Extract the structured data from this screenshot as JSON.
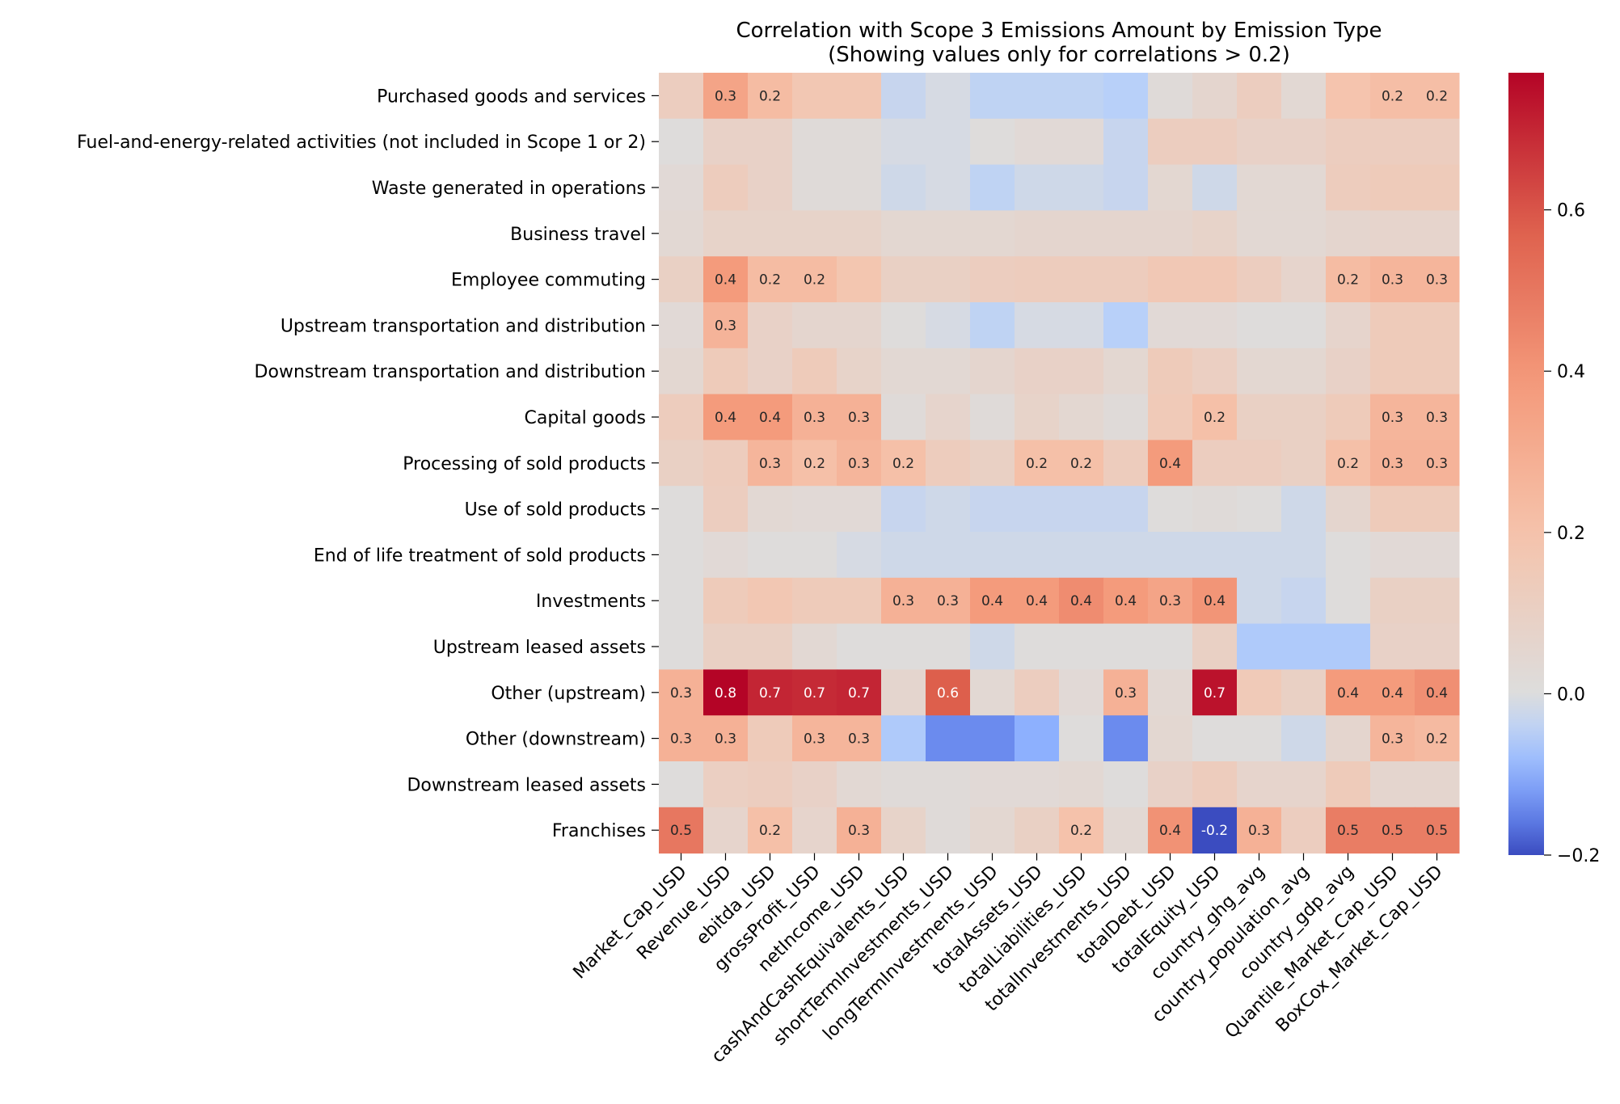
{
  "chart_data": {
    "type": "heatmap",
    "title": "Correlation with Scope 3 Emissions Amount by Emission Type",
    "subtitle": "(Showing values only for correlations > 0.2)",
    "rows": [
      "Purchased goods and services",
      "Fuel-and-energy-related activities (not included in Scope 1 or 2)",
      "Waste generated in operations",
      "Business travel",
      "Employee commuting",
      "Upstream transportation and distribution",
      "Downstream transportation and distribution",
      "Capital goods",
      "Processing of sold products",
      "Use of sold products",
      "End of life treatment of sold products",
      "Investments",
      "Upstream leased assets",
      "Other (upstream)",
      "Other (downstream)",
      "Downstream leased assets",
      "Franchises"
    ],
    "columns": [
      "Market_Cap_USD",
      "Revenue_USD",
      "ebitda_USD",
      "grossProfit_USD",
      "netIncome_USD",
      "cashAndCashEquivalents_USD",
      "shortTermInvestments_USD",
      "longTermInvestments_USD",
      "totalAssets_USD",
      "totalLiabilities_USD",
      "totalInvestments_USD",
      "totalDebt_USD",
      "totalEquity_USD",
      "country_ghg_avg",
      "country_population_avg",
      "country_gdp_avg",
      "Quantile_Market_Cap_USD",
      "BoxCox_Market_Cap_USD"
    ],
    "values": [
      [
        0.12,
        0.34,
        0.23,
        0.17,
        0.17,
        -0.03,
        -0.01,
        -0.04,
        -0.04,
        -0.04,
        -0.05,
        0.02,
        0.06,
        0.12,
        0.04,
        0.19,
        0.22,
        0.22
      ],
      [
        0.01,
        0.09,
        0.09,
        0.02,
        0.02,
        -0.01,
        -0.01,
        0.01,
        0.03,
        0.03,
        -0.03,
        0.12,
        0.12,
        0.09,
        0.09,
        0.12,
        0.12,
        0.12
      ],
      [
        0.03,
        0.13,
        0.09,
        0.02,
        0.02,
        -0.02,
        -0.01,
        -0.04,
        -0.02,
        -0.02,
        -0.03,
        0.05,
        -0.02,
        0.04,
        0.04,
        0.13,
        0.14,
        0.14
      ],
      [
        0.04,
        0.08,
        0.08,
        0.08,
        0.08,
        0.05,
        0.05,
        0.05,
        0.06,
        0.06,
        0.06,
        0.06,
        0.08,
        0.04,
        0.04,
        0.06,
        0.07,
        0.07
      ],
      [
        0.1,
        0.38,
        0.23,
        0.23,
        0.18,
        0.1,
        0.1,
        0.12,
        0.13,
        0.13,
        0.13,
        0.16,
        0.16,
        0.12,
        0.07,
        0.23,
        0.26,
        0.26
      ],
      [
        0.03,
        0.27,
        0.09,
        0.06,
        0.06,
        0.01,
        -0.01,
        -0.04,
        -0.01,
        -0.01,
        -0.05,
        0.03,
        0.03,
        0.01,
        0.01,
        0.07,
        0.14,
        0.14
      ],
      [
        0.05,
        0.14,
        0.09,
        0.14,
        0.08,
        0.04,
        0.04,
        0.06,
        0.09,
        0.09,
        0.05,
        0.14,
        0.11,
        0.05,
        0.05,
        0.09,
        0.14,
        0.14
      ],
      [
        0.13,
        0.38,
        0.38,
        0.28,
        0.28,
        0.02,
        0.07,
        0.02,
        0.08,
        0.05,
        0.02,
        0.15,
        0.21,
        0.1,
        0.1,
        0.14,
        0.26,
        0.26
      ],
      [
        0.1,
        0.13,
        0.26,
        0.21,
        0.26,
        0.21,
        0.13,
        0.1,
        0.21,
        0.21,
        0.13,
        0.38,
        0.12,
        0.12,
        0.1,
        0.21,
        0.27,
        0.27
      ],
      [
        0.01,
        0.12,
        0.04,
        0.03,
        0.03,
        -0.03,
        -0.02,
        -0.03,
        -0.03,
        -0.03,
        -0.03,
        0.01,
        0.02,
        0.01,
        -0.02,
        0.06,
        0.14,
        0.14
      ],
      [
        0.01,
        0.03,
        0.01,
        0.01,
        -0.01,
        -0.02,
        -0.02,
        -0.02,
        -0.02,
        -0.02,
        -0.02,
        -0.02,
        -0.02,
        -0.02,
        -0.02,
        0.01,
        0.03,
        0.03
      ],
      [
        0.01,
        0.14,
        0.17,
        0.14,
        0.14,
        0.28,
        0.28,
        0.38,
        0.38,
        0.43,
        0.38,
        0.34,
        0.4,
        -0.02,
        -0.03,
        0.01,
        0.1,
        0.1
      ],
      [
        0.01,
        0.1,
        0.1,
        0.04,
        0.01,
        0.01,
        0.01,
        -0.02,
        0.01,
        0.01,
        0.01,
        0.01,
        0.1,
        -0.06,
        -0.06,
        -0.06,
        0.09,
        0.09
      ],
      [
        0.28,
        0.77,
        0.7,
        0.69,
        0.7,
        0.06,
        0.58,
        0.04,
        0.12,
        0.03,
        0.28,
        0.04,
        0.74,
        0.15,
        0.1,
        0.38,
        0.38,
        0.42
      ],
      [
        0.28,
        0.28,
        0.14,
        0.26,
        0.26,
        -0.06,
        -0.14,
        -0.14,
        -0.1,
        0.01,
        -0.14,
        0.05,
        0.01,
        0.01,
        -0.02,
        0.06,
        0.26,
        0.24
      ],
      [
        0.01,
        0.11,
        0.12,
        0.09,
        0.04,
        0.02,
        0.02,
        0.03,
        0.03,
        0.04,
        0.01,
        0.09,
        0.13,
        0.07,
        0.07,
        0.14,
        0.06,
        0.06
      ],
      [
        0.5,
        0.07,
        0.21,
        0.07,
        0.28,
        0.08,
        0.02,
        0.05,
        0.1,
        0.2,
        0.04,
        0.41,
        -0.2,
        0.28,
        0.12,
        0.48,
        0.48,
        0.48
      ]
    ],
    "annotation_threshold": 0.2,
    "colormap": "coolwarm",
    "vmin": -0.2,
    "vmax": 0.77,
    "colorbar_ticks": [
      "−0.2",
      "0.0",
      "0.2",
      "0.4",
      "0.6"
    ],
    "colorbar_tick_values": [
      -0.2,
      0.0,
      0.2,
      0.4,
      0.6
    ],
    "xlabel": "",
    "ylabel": ""
  }
}
